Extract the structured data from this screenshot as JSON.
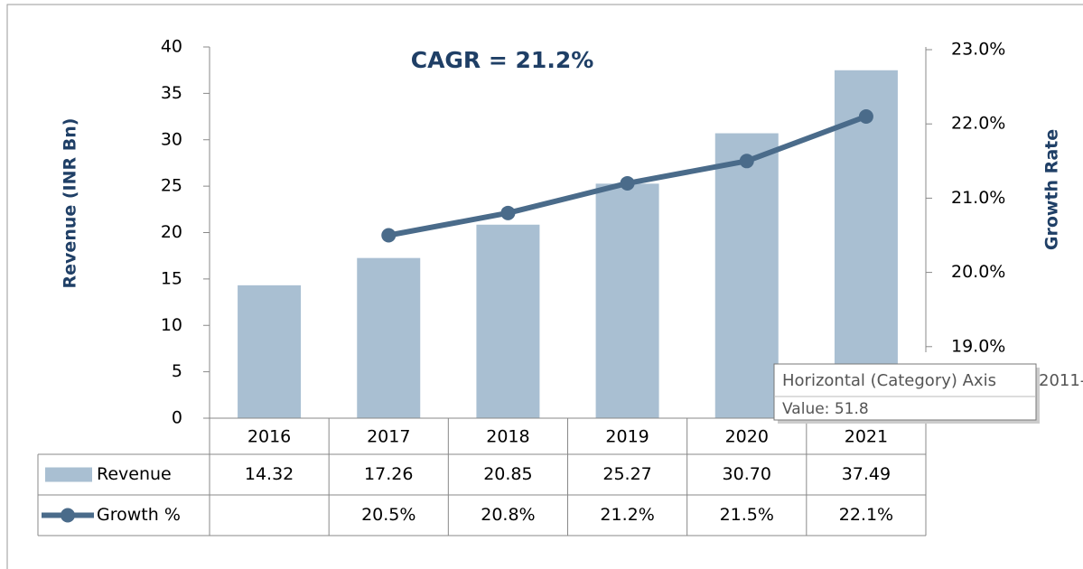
{
  "chart_data": {
    "type": "bar",
    "title": "CAGR = 21.2%",
    "y_label": "Revenue (INR Bn)",
    "y2_label": "Growth Rate",
    "categories": [
      "2016",
      "2017",
      "2018",
      "2019",
      "2020",
      "2021"
    ],
    "series": [
      {
        "name": "Revenue",
        "color": "#a9bfd2",
        "values": [
          14.32,
          17.26,
          20.85,
          25.27,
          30.7,
          37.49
        ],
        "value_labels": [
          "14.32",
          "17.26",
          "20.85",
          "25.27",
          "30.70",
          "37.49"
        ]
      },
      {
        "name": "Growth %",
        "color": "#4a6b8a",
        "axis": "y2",
        "values": [
          null,
          20.5,
          20.8,
          21.2,
          21.5,
          22.1
        ],
        "value_labels": [
          null,
          "20.5%",
          "20.8%",
          "21.2%",
          "21.5%",
          "22.1%"
        ]
      }
    ],
    "ylim": [
      0,
      40
    ],
    "yticks": [
      0,
      5,
      10,
      15,
      20,
      25,
      30,
      35,
      40
    ],
    "y2lim": [
      18,
      23
    ],
    "y2ticks": [
      {
        "value": 19,
        "label": "19.0%"
      },
      {
        "value": 20,
        "label": "20.0%"
      },
      {
        "value": 21,
        "label": "21.0%"
      },
      {
        "value": 22,
        "label": "22.0%"
      },
      {
        "value": 23,
        "label": "23.0%"
      }
    ],
    "tooltip": {
      "title": "Horizontal (Category) Axis",
      "value": "Value: 51.8",
      "fragment": "2011-"
    }
  }
}
